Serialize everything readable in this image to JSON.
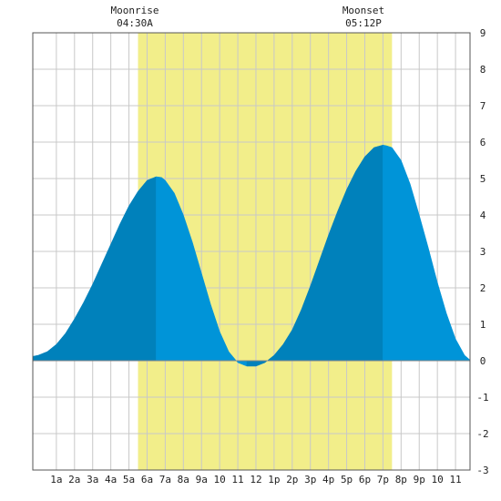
{
  "chart_data": {
    "type": "area",
    "x_unit": "hours since midnight",
    "xlim": [
      -0.3,
      23.8
    ],
    "ylim": [
      -3,
      9
    ],
    "y_ticks": [
      -3,
      -2,
      -1,
      0,
      1,
      2,
      3,
      4,
      5,
      6,
      7,
      8,
      9
    ],
    "x_tick_labels": [
      "1a",
      "2a",
      "3a",
      "4a",
      "5a",
      "6a",
      "7a",
      "8a",
      "9a",
      "10",
      "11",
      "12",
      "1p",
      "2p",
      "3p",
      "4p",
      "5p",
      "6p",
      "7p",
      "8p",
      "9p",
      "10",
      "11"
    ],
    "grid": true,
    "moon": {
      "rise_label": "Moonrise",
      "rise_time": "04:30A",
      "set_label": "Moonset",
      "set_time": "05:12P",
      "highlight_start": 5.5,
      "highlight_end": 19.5
    },
    "series": [
      {
        "x": [
          -0.3,
          0,
          0.5,
          1,
          1.5,
          2,
          2.5,
          3,
          3.5,
          4,
          4.5,
          5,
          5.5,
          6,
          6.5,
          6.8,
          7,
          7.5,
          8,
          8.5,
          9,
          9.5,
          10,
          10.5,
          11,
          11.5,
          12,
          12.5,
          13,
          13.5,
          14,
          14.5,
          15,
          15.5,
          16,
          16.5,
          17,
          17.5,
          18,
          18.5,
          19,
          19.2,
          19.5,
          20,
          20.5,
          21,
          21.5,
          22,
          22.5,
          23,
          23.5,
          23.8
        ],
        "values": [
          0.12,
          0.15,
          0.25,
          0.45,
          0.75,
          1.15,
          1.6,
          2.1,
          2.65,
          3.2,
          3.75,
          4.25,
          4.65,
          4.95,
          5.05,
          5.03,
          4.95,
          4.6,
          4.0,
          3.25,
          2.4,
          1.55,
          0.8,
          0.25,
          -0.05,
          -0.15,
          -0.15,
          -0.05,
          0.15,
          0.45,
          0.85,
          1.4,
          2.05,
          2.75,
          3.45,
          4.1,
          4.7,
          5.2,
          5.6,
          5.85,
          5.92,
          5.9,
          5.85,
          5.5,
          4.85,
          4.0,
          3.1,
          2.15,
          1.3,
          0.6,
          0.15,
          0.02
        ]
      }
    ],
    "colors": {
      "moon_highlight": "#f2ee8a",
      "fill_dark": "#0081bb",
      "fill_light": "#0094d8",
      "grid": "#c8c8c8",
      "border": "#555555"
    }
  }
}
